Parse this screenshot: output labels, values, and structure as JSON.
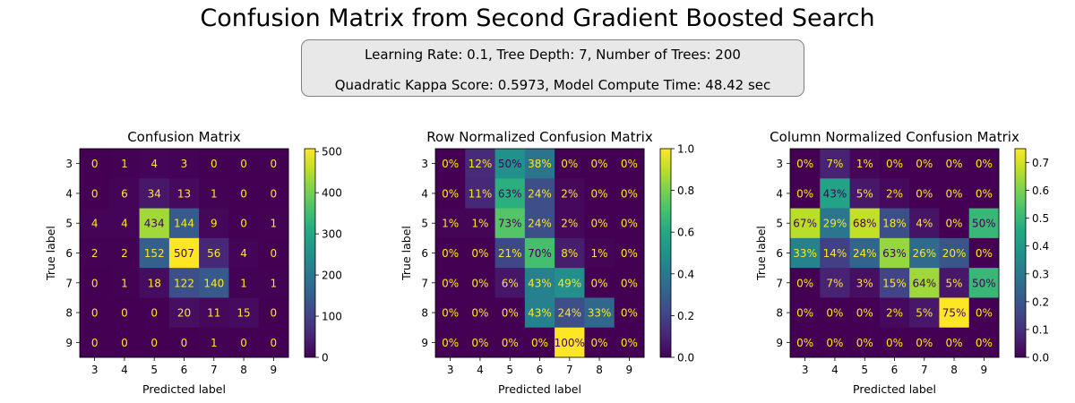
{
  "title": "Confusion Matrix from Second Gradient Boosted Search",
  "info": {
    "line1": "Learning Rate: 0.1, Tree Depth: 7, Number of Trees: 200",
    "line2": "Quadratic Kappa Score: 0.5973,  Model Compute Time: 48.42 sec"
  },
  "chart_data": [
    {
      "type": "heatmap",
      "title": "Confusion Matrix",
      "xlabel": "Predicted label",
      "ylabel": "True label",
      "labels": [
        "3",
        "4",
        "5",
        "6",
        "7",
        "8",
        "9"
      ],
      "values": [
        [
          0,
          1,
          4,
          3,
          0,
          0,
          0
        ],
        [
          0,
          6,
          34,
          13,
          1,
          0,
          0
        ],
        [
          4,
          4,
          434,
          144,
          9,
          0,
          1
        ],
        [
          2,
          2,
          152,
          507,
          56,
          4,
          0
        ],
        [
          0,
          1,
          18,
          122,
          140,
          1,
          1
        ],
        [
          0,
          0,
          0,
          20,
          11,
          15,
          0
        ],
        [
          0,
          0,
          0,
          0,
          1,
          0,
          0
        ]
      ],
      "cell_labels": [
        [
          "0",
          "1",
          "4",
          "3",
          "0",
          "0",
          "0"
        ],
        [
          "0",
          "6",
          "34",
          "13",
          "1",
          "0",
          "0"
        ],
        [
          "4",
          "4",
          "434",
          "144",
          "9",
          "0",
          "1"
        ],
        [
          "2",
          "2",
          "152",
          "507",
          "56",
          "4",
          "0"
        ],
        [
          "0",
          "1",
          "18",
          "122",
          "140",
          "1",
          "1"
        ],
        [
          "0",
          "0",
          "0",
          "20",
          "11",
          "15",
          "0"
        ],
        [
          "0",
          "0",
          "0",
          "0",
          "1",
          "0",
          "0"
        ]
      ],
      "colorbar": {
        "min": 0,
        "max": 507,
        "ticks": [
          0,
          100,
          200,
          300,
          400,
          500
        ],
        "tick_labels": [
          "0",
          "100",
          "200",
          "300",
          "400",
          "500"
        ]
      }
    },
    {
      "type": "heatmap",
      "title": "Row Normalized Confusion Matrix",
      "xlabel": "Predicted label",
      "ylabel": "True label",
      "labels": [
        "3",
        "4",
        "5",
        "6",
        "7",
        "8",
        "9"
      ],
      "values": [
        [
          0.0,
          0.12,
          0.5,
          0.38,
          0.0,
          0.0,
          0.0
        ],
        [
          0.0,
          0.11,
          0.63,
          0.24,
          0.02,
          0.0,
          0.0
        ],
        [
          0.01,
          0.01,
          0.73,
          0.24,
          0.02,
          0.0,
          0.0
        ],
        [
          0.0,
          0.0,
          0.21,
          0.7,
          0.08,
          0.01,
          0.0
        ],
        [
          0.0,
          0.0,
          0.06,
          0.43,
          0.49,
          0.0,
          0.0
        ],
        [
          0.0,
          0.0,
          0.0,
          0.43,
          0.24,
          0.33,
          0.0
        ],
        [
          0.0,
          0.0,
          0.0,
          0.0,
          1.0,
          0.0,
          0.0
        ]
      ],
      "cell_labels": [
        [
          "0%",
          "12%",
          "50%",
          "38%",
          "0%",
          "0%",
          "0%"
        ],
        [
          "0%",
          "11%",
          "63%",
          "24%",
          "2%",
          "0%",
          "0%"
        ],
        [
          "1%",
          "1%",
          "73%",
          "24%",
          "2%",
          "0%",
          "0%"
        ],
        [
          "0%",
          "0%",
          "21%",
          "70%",
          "8%",
          "1%",
          "0%"
        ],
        [
          "0%",
          "0%",
          "6%",
          "43%",
          "49%",
          "0%",
          "0%"
        ],
        [
          "0%",
          "0%",
          "0%",
          "43%",
          "24%",
          "33%",
          "0%"
        ],
        [
          "0%",
          "0%",
          "0%",
          "0%",
          "100%",
          "0%",
          "0%"
        ]
      ],
      "colorbar": {
        "min": 0,
        "max": 1.0,
        "ticks": [
          0,
          0.2,
          0.4,
          0.6,
          0.8,
          1.0
        ],
        "tick_labels": [
          "0.0",
          "0.2",
          "0.4",
          "0.6",
          "0.8",
          "1.0"
        ]
      }
    },
    {
      "type": "heatmap",
      "title": "Column Normalized Confusion Matrix",
      "xlabel": "Predicted label",
      "ylabel": "True label",
      "labels": [
        "3",
        "4",
        "5",
        "6",
        "7",
        "8",
        "9"
      ],
      "values": [
        [
          0.0,
          0.07,
          0.01,
          0.0,
          0.0,
          0.0,
          0.0
        ],
        [
          0.0,
          0.43,
          0.05,
          0.02,
          0.0,
          0.0,
          0.0
        ],
        [
          0.67,
          0.29,
          0.68,
          0.18,
          0.04,
          0.0,
          0.5
        ],
        [
          0.33,
          0.14,
          0.24,
          0.63,
          0.26,
          0.2,
          0.0
        ],
        [
          0.0,
          0.07,
          0.03,
          0.15,
          0.64,
          0.05,
          0.5
        ],
        [
          0.0,
          0.0,
          0.0,
          0.02,
          0.05,
          0.75,
          0.0
        ],
        [
          0.0,
          0.0,
          0.0,
          0.0,
          0.0,
          0.0,
          0.0
        ]
      ],
      "cell_labels": [
        [
          "0%",
          "7%",
          "1%",
          "0%",
          "0%",
          "0%",
          "0%"
        ],
        [
          "0%",
          "43%",
          "5%",
          "2%",
          "0%",
          "0%",
          "0%"
        ],
        [
          "67%",
          "29%",
          "68%",
          "18%",
          "4%",
          "0%",
          "50%"
        ],
        [
          "33%",
          "14%",
          "24%",
          "63%",
          "26%",
          "20%",
          "0%"
        ],
        [
          "0%",
          "7%",
          "3%",
          "15%",
          "64%",
          "5%",
          "50%"
        ],
        [
          "0%",
          "0%",
          "0%",
          "2%",
          "5%",
          "75%",
          "0%"
        ],
        [
          "0%",
          "0%",
          "0%",
          "0%",
          "0%",
          "0%",
          "0%"
        ]
      ],
      "colorbar": {
        "min": 0,
        "max": 0.75,
        "ticks": [
          0,
          0.1,
          0.2,
          0.3,
          0.4,
          0.5,
          0.6,
          0.7
        ],
        "tick_labels": [
          "0.0",
          "0.1",
          "0.2",
          "0.3",
          "0.4",
          "0.5",
          "0.6",
          "0.7"
        ]
      }
    }
  ],
  "colormap": "viridis"
}
